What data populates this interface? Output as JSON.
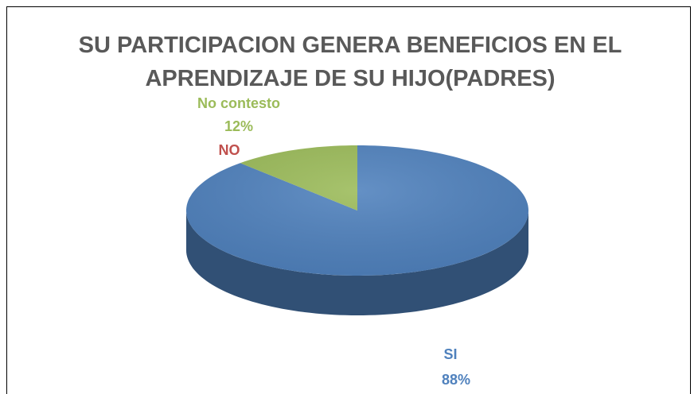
{
  "chart_data": {
    "type": "pie",
    "title": "SU PARTICIPACION GENERA BENEFICIOS EN EL APRENDIZAJE DE SU HIJO(PADRES)",
    "categories": [
      "SI",
      "NO",
      "No contesto"
    ],
    "values": [
      88,
      0,
      12
    ],
    "value_labels": [
      "88%",
      null,
      "12%"
    ],
    "colors": [
      "#4f81bd",
      "#c0504d",
      "#9bbb59"
    ]
  }
}
